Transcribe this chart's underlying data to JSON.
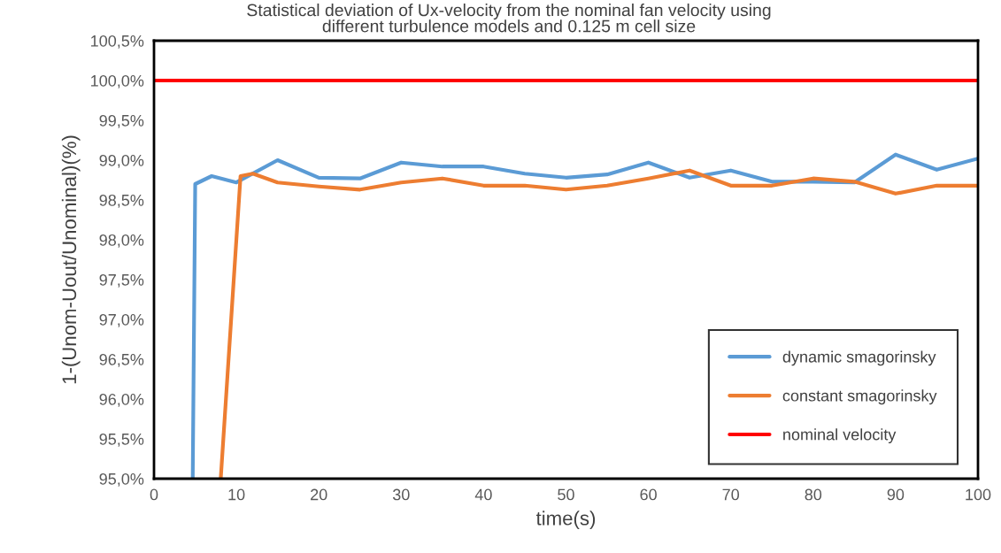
{
  "chart_data": {
    "type": "line",
    "title": "Statistical deviation of Ux-velocity from the nominal fan velocity using\ndifferent turbulence models and 0.125 m cell size",
    "xlabel": "time(s)",
    "ylabel": "1-(Unom-Uout/Unominal)(%)",
    "series": [
      {
        "name": "dynamic smagorinsky",
        "color": "#5b9bd5",
        "x": [
          4.7,
          5,
          7,
          10,
          15,
          20,
          25,
          30,
          35,
          40,
          45,
          50,
          55,
          60,
          65,
          70,
          75,
          80,
          85,
          90,
          95,
          100
        ],
        "values": [
          95.0,
          98.7,
          98.8,
          98.72,
          99.0,
          98.78,
          98.77,
          98.97,
          98.92,
          98.92,
          98.83,
          98.78,
          98.82,
          98.97,
          98.78,
          98.87,
          98.73,
          98.73,
          98.72,
          99.07,
          98.88,
          99.02
        ]
      },
      {
        "name": "constant smagorinsky",
        "color": "#ed7d31",
        "x": [
          8.1,
          10.5,
          12,
          15,
          20,
          25,
          30,
          35,
          40,
          45,
          50,
          55,
          60,
          65,
          70,
          75,
          80,
          85,
          90,
          95,
          100
        ],
        "values": [
          95.0,
          98.8,
          98.83,
          98.72,
          98.67,
          98.63,
          98.72,
          98.77,
          98.68,
          98.68,
          98.63,
          98.68,
          98.77,
          98.87,
          98.68,
          98.68,
          98.77,
          98.73,
          98.58,
          98.68,
          98.68
        ]
      },
      {
        "name": "nominal velocity",
        "color": "#ff0000",
        "x": [
          0,
          100
        ],
        "values": [
          100.0,
          100.0
        ]
      }
    ],
    "xlim": [
      0,
      100
    ],
    "xticks": [
      0,
      10,
      20,
      30,
      40,
      50,
      60,
      70,
      80,
      90,
      100
    ],
    "ylim": [
      95,
      100.5
    ],
    "yticks": [
      {
        "value": 95,
        "label": "95,0%"
      },
      {
        "value": 95.5,
        "label": "95,5%"
      },
      {
        "value": 96,
        "label": "96,0%"
      },
      {
        "value": 96.5,
        "label": "96,5%"
      },
      {
        "value": 97,
        "label": "97,0%"
      },
      {
        "value": 97.5,
        "label": "97,5%"
      },
      {
        "value": 98,
        "label": "98,0%"
      },
      {
        "value": 98.5,
        "label": "98,5%"
      },
      {
        "value": 99,
        "label": "99,0%"
      },
      {
        "value": 99.5,
        "label": "99,5%"
      },
      {
        "value": 100,
        "label": "100,0%"
      },
      {
        "value": 100.5,
        "label": "100,5%"
      }
    ],
    "legend": "bottom right",
    "grid": false,
    "marker": "none",
    "line_style": "solid"
  }
}
